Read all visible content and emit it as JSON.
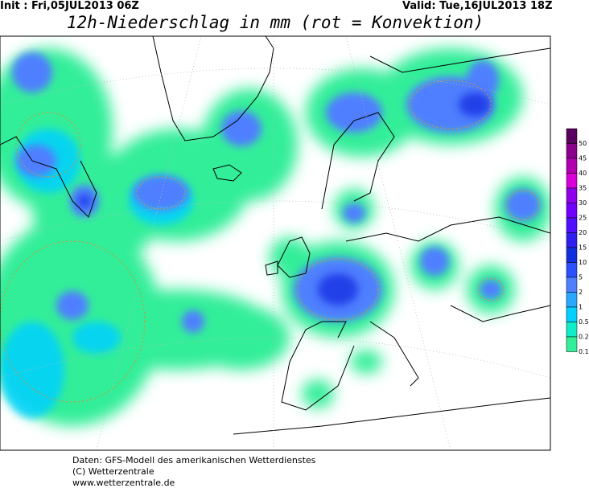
{
  "header": {
    "init": "Init : Fri,05JUL2013 06Z",
    "valid": "Valid: Tue,16JUL2013 18Z",
    "title": "12h-Niederschlag in mm (rot = Konvektion)"
  },
  "legend": {
    "levels": [
      {
        "label": "50",
        "color": "#5a0060"
      },
      {
        "label": "45",
        "color": "#8a008a"
      },
      {
        "label": "40",
        "color": "#b000b0"
      },
      {
        "label": "35",
        "color": "#d800d8"
      },
      {
        "label": "30",
        "color": "#9000e8"
      },
      {
        "label": "25",
        "color": "#7000ff"
      },
      {
        "label": "20",
        "color": "#5010ff"
      },
      {
        "label": "15",
        "color": "#3020f0"
      },
      {
        "label": "10",
        "color": "#1030e0"
      },
      {
        "label": "5",
        "color": "#2a50ff"
      },
      {
        "label": "2",
        "color": "#4f7fff"
      },
      {
        "label": "1",
        "color": "#2aa8ff"
      },
      {
        "label": "0.5",
        "color": "#00d0ff"
      },
      {
        "label": "0.2",
        "color": "#10eec8"
      },
      {
        "label": "0.1",
        "color": "#33ee99"
      }
    ]
  },
  "footer": [
    "Daten: GFS-Modell des amerikanischen Wetterdienstes",
    "(C) Wetterzentrale",
    "www.wetterzentrale.de"
  ]
}
